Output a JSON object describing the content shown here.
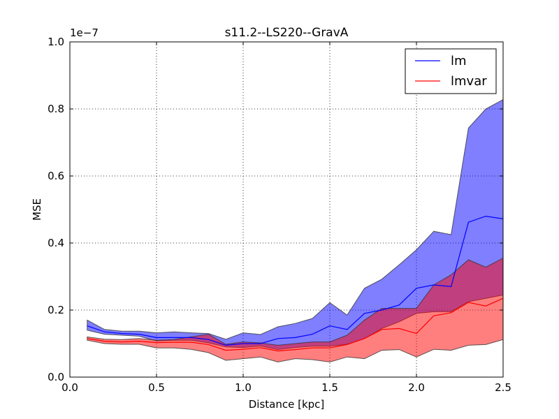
{
  "chart_data": {
    "type": "line",
    "title": "s11.2--LS220--GravA",
    "xlabel": "Distance [kpc]",
    "ylabel": "MSE",
    "offset_label": "1e−7",
    "scale": 1e-07,
    "xlim": [
      0.0,
      2.5
    ],
    "ylim": [
      0.0,
      1.0
    ],
    "xticks": [
      0.0,
      0.5,
      1.0,
      1.5,
      2.0,
      2.5
    ],
    "xtick_labels": [
      "0.0",
      "0.5",
      "1.0",
      "1.5",
      "2.0",
      "2.5"
    ],
    "yticks": [
      0.0,
      0.2,
      0.4,
      0.6,
      0.8,
      1.0
    ],
    "ytick_labels": [
      "0.0",
      "0.2",
      "0.4",
      "0.6",
      "0.8",
      "1.0"
    ],
    "grid": true,
    "legend_position": "top-right",
    "x": [
      0.1,
      0.2,
      0.3,
      0.4,
      0.5,
      0.6,
      0.7,
      0.8,
      0.9,
      1.0,
      1.1,
      1.2,
      1.3,
      1.4,
      1.5,
      1.6,
      1.7,
      1.8,
      1.9,
      2.0,
      2.1,
      2.2,
      2.3,
      2.4,
      2.5
    ],
    "series": [
      {
        "name": "lm",
        "color": "#0000ff",
        "fill_color": "#0000ff",
        "y": [
          0.153,
          0.135,
          0.13,
          0.128,
          0.118,
          0.118,
          0.118,
          0.112,
          0.095,
          0.1,
          0.1,
          0.115,
          0.118,
          0.128,
          0.153,
          0.142,
          0.19,
          0.2,
          0.215,
          0.265,
          0.275,
          0.27,
          0.462,
          0.48,
          0.472
        ],
        "upper": [
          0.17,
          0.142,
          0.137,
          0.137,
          0.132,
          0.135,
          0.132,
          0.13,
          0.113,
          0.132,
          0.127,
          0.15,
          0.16,
          0.175,
          0.222,
          0.185,
          0.265,
          0.292,
          0.335,
          0.38,
          0.435,
          0.425,
          0.743,
          0.8,
          0.828
        ],
        "lower": [
          0.14,
          0.128,
          0.125,
          0.122,
          0.108,
          0.11,
          0.11,
          0.102,
          0.09,
          0.088,
          0.093,
          0.082,
          0.088,
          0.092,
          0.092,
          0.098,
          0.115,
          0.145,
          0.165,
          0.19,
          0.195,
          0.195,
          0.225,
          0.235,
          0.245
        ]
      },
      {
        "name": "lmvar",
        "color": "#ff0000",
        "fill_color": "#ff0000",
        "y": [
          0.115,
          0.107,
          0.105,
          0.107,
          0.103,
          0.104,
          0.104,
          0.097,
          0.08,
          0.083,
          0.088,
          0.078,
          0.082,
          0.087,
          0.087,
          0.097,
          0.115,
          0.142,
          0.145,
          0.13,
          0.183,
          0.192,
          0.223,
          0.212,
          0.235
        ],
        "upper": [
          0.12,
          0.113,
          0.112,
          0.115,
          0.11,
          0.112,
          0.12,
          0.128,
          0.098,
          0.105,
          0.102,
          0.095,
          0.1,
          0.105,
          0.105,
          0.125,
          0.17,
          0.205,
          0.205,
          0.205,
          0.275,
          0.305,
          0.35,
          0.328,
          0.355
        ],
        "lower": [
          0.11,
          0.1,
          0.098,
          0.098,
          0.087,
          0.087,
          0.083,
          0.073,
          0.05,
          0.055,
          0.06,
          0.045,
          0.055,
          0.052,
          0.045,
          0.06,
          0.055,
          0.08,
          0.082,
          0.06,
          0.083,
          0.08,
          0.095,
          0.097,
          0.112
        ]
      }
    ]
  }
}
